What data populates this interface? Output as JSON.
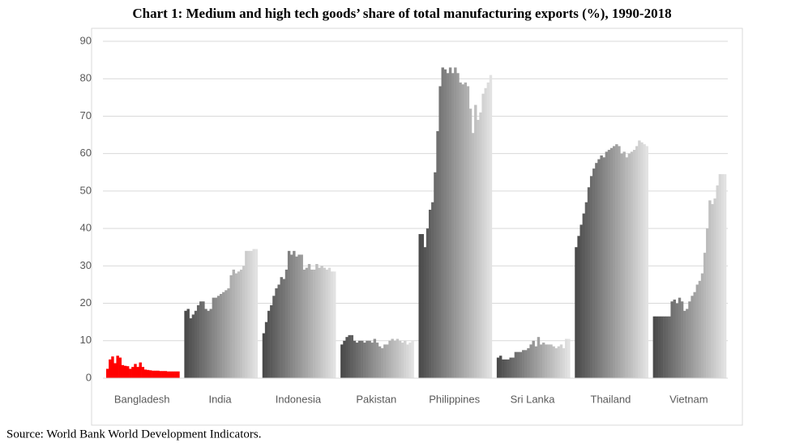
{
  "chart_data": {
    "type": "grouped-bar",
    "title": "Chart 1: Medium and high tech goods’ share of total manufacturing exports (%), 1990-2018",
    "source": "Source: World Bank World Development Indicators.",
    "categories": [
      "Bangladesh",
      "India",
      "Indonesia",
      "Pakistan",
      "Philippines",
      "Sri Lanka",
      "Thailand",
      "Vietnam"
    ],
    "values": [
      [
        2.5,
        5,
        5.8,
        4,
        6,
        5.5,
        3.5,
        3.3,
        3.2,
        2.5,
        3,
        3.8,
        3,
        4.2,
        3,
        2.3,
        2.2,
        2.1,
        2,
        2,
        2,
        1.9,
        1.9,
        1.9,
        1.8,
        1.8,
        1.8,
        1.8,
        1.8
      ],
      [
        18,
        18.5,
        16,
        17,
        18,
        19.5,
        20.5,
        20.5,
        18.5,
        18,
        18.5,
        21.5,
        21.5,
        22,
        22.5,
        23,
        23.5,
        24,
        27.5,
        29,
        28,
        28.5,
        29,
        30,
        34,
        34,
        34,
        34.5,
        34.5
      ],
      [
        12,
        15,
        18,
        19.5,
        22,
        24,
        25,
        27,
        26.5,
        29,
        34,
        33,
        34,
        32.5,
        33,
        33,
        29,
        29.5,
        30.5,
        29,
        29,
        30.5,
        29.5,
        30,
        29.5,
        29,
        29.5,
        28.5,
        28.5
      ],
      [
        9,
        10,
        11,
        11.5,
        11.5,
        10,
        9.5,
        10,
        10,
        9.5,
        10,
        10,
        9.5,
        10.5,
        9.5,
        8.5,
        8,
        9,
        9,
        10,
        10.5,
        10,
        10.5,
        10,
        9.5,
        10,
        9,
        9.5,
        10
      ],
      [
        38.5,
        38.5,
        35,
        40,
        45,
        47,
        55,
        66,
        78,
        83,
        82.5,
        81.5,
        83,
        81.5,
        83,
        81.5,
        79,
        78.5,
        79,
        78,
        72,
        65.5,
        73,
        69,
        71,
        76,
        77.5,
        79,
        81
      ],
      [
        5.5,
        6,
        5,
        5,
        5,
        5.5,
        5.5,
        7,
        7,
        7,
        7.5,
        7.5,
        8,
        9,
        10,
        8.5,
        11,
        9,
        9.5,
        9,
        9,
        9,
        8.5,
        8,
        8.5,
        9,
        8,
        10.5,
        10.5
      ],
      [
        35,
        38,
        41,
        44,
        47,
        51,
        54,
        56,
        57.5,
        58.5,
        59.5,
        59,
        60.5,
        61,
        61.5,
        62,
        62.5,
        62,
        60,
        60.5,
        59,
        60,
        60.5,
        61,
        62,
        63.5,
        63,
        62.5,
        62
      ],
      [
        16.5,
        16.5,
        16.5,
        16.5,
        16.5,
        16.5,
        16.5,
        20.5,
        21,
        20,
        21.5,
        20.5,
        18,
        18.5,
        20.5,
        22,
        23,
        25,
        26,
        28,
        33.5,
        40,
        47.5,
        46.5,
        48,
        51.5,
        54.5,
        54.5,
        54.5
      ]
    ],
    "bar_colors": [
      [
        "#ff0000",
        "#ff0000"
      ],
      [
        "#4a4a4a",
        "#e2e2e2"
      ],
      [
        "#4a4a4a",
        "#e2e2e2"
      ],
      [
        "#4a4a4a",
        "#e2e2e2"
      ],
      [
        "#4a4a4a",
        "#e2e2e2"
      ],
      [
        "#4a4a4a",
        "#e2e2e2"
      ],
      [
        "#4a4a4a",
        "#e2e2e2"
      ],
      [
        "#4a4a4a",
        "#e2e2e2"
      ]
    ],
    "ylim": [
      0,
      90
    ],
    "yticks": [
      0,
      10,
      20,
      30,
      40,
      50,
      60,
      70,
      80,
      90
    ],
    "grid": true
  }
}
